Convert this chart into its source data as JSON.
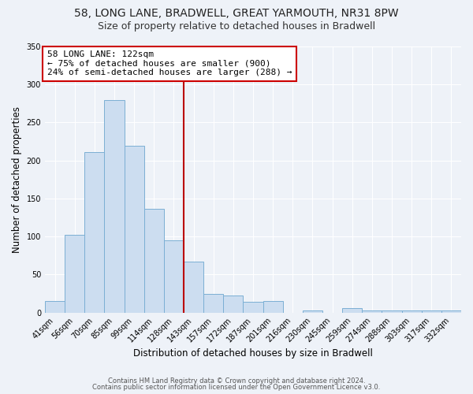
{
  "title": "58, LONG LANE, BRADWELL, GREAT YARMOUTH, NR31 8PW",
  "subtitle": "Size of property relative to detached houses in Bradwell",
  "xlabel": "Distribution of detached houses by size in Bradwell",
  "ylabel": "Number of detached properties",
  "bar_labels": [
    "41sqm",
    "56sqm",
    "70sqm",
    "85sqm",
    "99sqm",
    "114sqm",
    "128sqm",
    "143sqm",
    "157sqm",
    "172sqm",
    "187sqm",
    "201sqm",
    "216sqm",
    "230sqm",
    "245sqm",
    "259sqm",
    "274sqm",
    "288sqm",
    "303sqm",
    "317sqm",
    "332sqm"
  ],
  "bar_values": [
    15,
    102,
    211,
    280,
    219,
    136,
    95,
    67,
    25,
    22,
    14,
    15,
    0,
    3,
    0,
    6,
    3,
    3,
    3,
    3,
    3
  ],
  "bar_color": "#ccddf0",
  "bar_edge_color": "#7bafd4",
  "ylim": [
    0,
    350
  ],
  "yticks": [
    0,
    50,
    100,
    150,
    200,
    250,
    300,
    350
  ],
  "vline_x": 6.5,
  "vline_color": "#bb0000",
  "annotation_title": "58 LONG LANE: 122sqm",
  "annotation_line1": "← 75% of detached houses are smaller (900)",
  "annotation_line2": "24% of semi-detached houses are larger (288) →",
  "annotation_box_color": "#cc0000",
  "footer_line1": "Contains HM Land Registry data © Crown copyright and database right 2024.",
  "footer_line2": "Contains public sector information licensed under the Open Government Licence v3.0.",
  "bg_color": "#eef2f8",
  "plot_bg_color": "#eef2f8",
  "grid_color": "#ffffff",
  "title_fontsize": 10,
  "subtitle_fontsize": 9,
  "axis_label_fontsize": 8.5,
  "tick_fontsize": 7,
  "annotation_fontsize": 8,
  "footer_fontsize": 6
}
